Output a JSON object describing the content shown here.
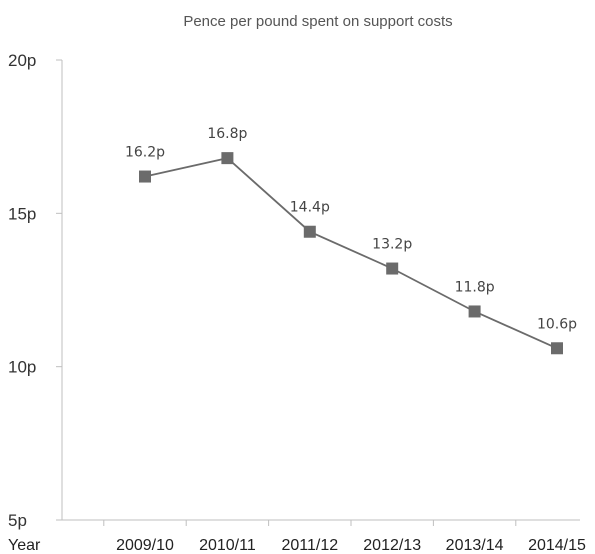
{
  "chart_data": {
    "type": "line",
    "title": "Pence per pound spent on support costs",
    "xlabel": "Year",
    "ylabel": "",
    "categories": [
      "2009/10",
      "2010/11",
      "2011/12",
      "2012/13",
      "2013/14",
      "2014/15"
    ],
    "values": [
      16.2,
      16.8,
      14.4,
      13.2,
      11.8,
      10.6
    ],
    "data_labels": [
      "16.2p",
      "16.8p",
      "14.4p",
      "13.2p",
      "11.8p",
      "10.6p"
    ],
    "ylim": [
      5,
      20
    ],
    "yticks": [
      5,
      10,
      15,
      20
    ],
    "ytick_labels": [
      "5p",
      "10p",
      "15p",
      "20p"
    ],
    "grid": false,
    "legend": "none",
    "series_color": "#6b6b6b",
    "marker": "square"
  }
}
